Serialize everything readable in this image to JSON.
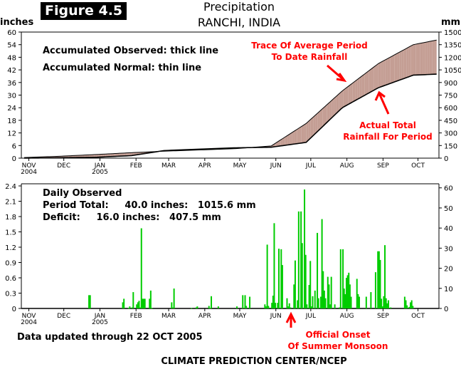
{
  "figure": {
    "badge": "Figure 4.5",
    "title_line1": "Precipitation",
    "title_line2": "RANCHI,  INDIA",
    "unit_left": "inches",
    "unit_right": "mm",
    "colors": {
      "deficit_fill": "#c49e94",
      "surplus_fill": "#90e880",
      "daily_bar": "#00cc00",
      "annotation": "#ff0000",
      "badge_bg": "#000000"
    }
  },
  "top_panel": {
    "legend_observed": "Accumulated Observed: thick line",
    "legend_normal": "Accumulated Normal: thin line",
    "annotation_normal": [
      "Trace Of Average Period",
      "To Date Rainfall"
    ],
    "annotation_actual": [
      "Actual Total",
      "Rainfall For Period"
    ]
  },
  "bottom_panel": {
    "label": "Daily Observed",
    "period_total": "Period Total:     40.0 inches:   1015.6 mm",
    "deficit": "Deficit:     16.0 inches:   407.5 mm",
    "annotation_onset": [
      "Official Onset",
      "Of Summer Monsoon"
    ]
  },
  "footer": {
    "updated": "Data updated through 22 OCT 2005",
    "credit": "CLIMATE PREDICTION CENTER/NCEP"
  },
  "axes": {
    "months": [
      "NOV",
      "DEC",
      "JAN",
      "FEB",
      "MAR",
      "APR",
      "MAY",
      "JUN",
      "JUL",
      "AUG",
      "SEP",
      "OCT"
    ],
    "month_years": {
      "NOV": "2004",
      "JAN": "2005"
    },
    "top_left_ticks": [
      "0",
      "6",
      "12",
      "18",
      "24",
      "30",
      "36",
      "42",
      "48",
      "54",
      "60"
    ],
    "top_right_ticks": [
      "0",
      "150",
      "300",
      "450",
      "600",
      "750",
      "900",
      "1050",
      "1200",
      "1350",
      "1500"
    ],
    "bottom_left_ticks": [
      "0",
      "0.3",
      "0.6",
      "0.9",
      "1.2",
      "1.5",
      "1.8",
      "2.1",
      "2.4"
    ],
    "bottom_right_ticks": [
      "0",
      "10",
      "20",
      "30",
      "40",
      "50",
      "60"
    ]
  },
  "chart_data": [
    {
      "type": "line",
      "title": "Precipitation RANCHI, INDIA - Accumulated",
      "xlabel": "",
      "ylabel": "inches",
      "y2label": "mm",
      "ylim": [
        0,
        60
      ],
      "y2lim": [
        0,
        1500
      ],
      "grid": false,
      "x": [
        "1 NOV",
        "1 DEC",
        "1 JAN",
        "1 FEB",
        "1 MAR",
        "1 APR",
        "1 MAY",
        "1 JUN",
        "1 JUL",
        "1 AUG",
        "1 SEP",
        "1 OCT",
        "22 OCT"
      ],
      "series": [
        {
          "name": "Accumulated Normal (thin line)",
          "values": [
            0.3,
            0.9,
            1.7,
            2.6,
            3.3,
            3.9,
            4.5,
            5.8,
            16.5,
            32.0,
            45.0,
            54.0,
            56.3
          ]
        },
        {
          "name": "Accumulated Observed (thick line)",
          "values": [
            0.0,
            0.2,
            0.4,
            1.2,
            3.6,
            4.3,
            4.9,
            5.2,
            7.5,
            24.0,
            33.5,
            39.5,
            40.0
          ]
        }
      ]
    },
    {
      "type": "bar",
      "title": "Daily Observed",
      "xlabel": "",
      "ylabel": "inches",
      "y2label": "mm",
      "ylim": [
        0,
        2.4
      ],
      "y2lim": [
        0,
        62
      ],
      "grid": false,
      "x_day_index_from_1_nov_2004": [
        55,
        56,
        84,
        85,
        89,
        90,
        92,
        93,
        96,
        97,
        98,
        99,
        100,
        101,
        102,
        103,
        107,
        108,
        109,
        126,
        127,
        128,
        143,
        147,
        148,
        158,
        159,
        160,
        166,
        182,
        187,
        189,
        190,
        193,
        206,
        207,
        208,
        209,
        212,
        213,
        214,
        215,
        217,
        218,
        220,
        221,
        225,
        226,
        227,
        228,
        231,
        232,
        234,
        235,
        237,
        238,
        240,
        241,
        242,
        244,
        245,
        246,
        247,
        249,
        251,
        252,
        254,
        255,
        256,
        257,
        258,
        260,
        261,
        262,
        263,
        266,
        270,
        271,
        273,
        274,
        275,
        276,
        277,
        278,
        279,
        280,
        285,
        286,
        287,
        293,
        297,
        301,
        303,
        304,
        305,
        306,
        307,
        308,
        309,
        310,
        311,
        312,
        314,
        326,
        327,
        328,
        330,
        331,
        332,
        333
      ],
      "values_inches": [
        0.26,
        0.26,
        0.12,
        0.19,
        0.01,
        0.04,
        0.02,
        0.32,
        0.08,
        0.12,
        0.15,
        0.02,
        1.57,
        0.19,
        0.19,
        0.19,
        0.19,
        0.35,
        0.01,
        0.12,
        0.02,
        0.39,
        0.01,
        0.02,
        0.04,
        0.05,
        0.01,
        0.24,
        0.04,
        0.04,
        0.26,
        0.26,
        0.05,
        0.23,
        0.08,
        0.04,
        1.25,
        0.05,
        0.11,
        0.25,
        1.67,
        0.11,
        0.11,
        1.17,
        1.16,
        0.85,
        0.2,
        0.04,
        0.1,
        0.02,
        0.47,
        0.94,
        0.16,
        1.9,
        1.9,
        1.28,
        2.33,
        1.05,
        0.08,
        0.46,
        0.93,
        0.04,
        0.24,
        0.35,
        1.48,
        0.2,
        0.23,
        1.75,
        0.73,
        0.35,
        0.2,
        0.62,
        0.47,
        0.08,
        0.62,
        0.08,
        0.02,
        1.16,
        1.16,
        0.39,
        0.28,
        0.6,
        0.65,
        0.7,
        0.47,
        0.23,
        0.58,
        0.28,
        0.23,
        0.23,
        0.32,
        0.71,
        1.12,
        1.12,
        0.95,
        0.19,
        0.04,
        0.24,
        1.24,
        0.2,
        0.1,
        0.16,
        0.02,
        0.23,
        0.16,
        0.06,
        0.03,
        0.12,
        0.16,
        0.05
      ]
    }
  ]
}
